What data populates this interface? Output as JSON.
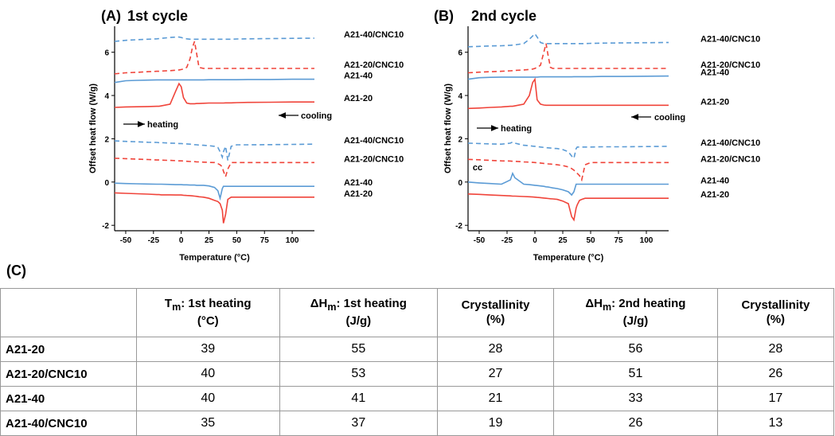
{
  "chart_data": [
    {
      "type": "line",
      "panel": "(A)",
      "title": "1st cycle",
      "xlabel": "Temperature (°C)",
      "ylabel": "Offset heat flow (W/g)",
      "xlim": [
        -60,
        120
      ],
      "ylim": [
        -2.25,
        7.2
      ],
      "xticks": [
        -50,
        -25,
        0,
        25,
        50,
        75,
        100
      ],
      "yticks": [
        -2,
        0,
        2,
        4,
        6
      ],
      "annotations": [
        "heating",
        "cooling"
      ],
      "x": [
        -60,
        -50,
        -40,
        -30,
        -22,
        -20,
        -18,
        -10,
        -5,
        -2,
        0,
        2,
        5,
        8,
        10,
        12,
        14,
        16,
        20,
        25,
        30,
        33,
        35,
        37,
        38,
        40,
        42,
        45,
        50,
        60,
        80,
        100,
        120
      ],
      "series": [
        {
          "name": "A21-40/CNC10",
          "color": "#5b9bd5",
          "dashed": true,
          "values": [
            6.5,
            6.55,
            6.58,
            6.6,
            6.62,
            6.63,
            6.64,
            6.68,
            6.7,
            6.7,
            6.68,
            6.65,
            6.62,
            6.6,
            6.6,
            6.6,
            6.6,
            6.6,
            6.6,
            6.6,
            6.6,
            6.6,
            6.6,
            6.6,
            6.6,
            6.6,
            6.6,
            6.6,
            6.61,
            6.62,
            6.63,
            6.64,
            6.65
          ]
        },
        {
          "name": "A21-20/CNC10",
          "color": "#f0443a",
          "dashed": true,
          "values": [
            5.0,
            5.05,
            5.07,
            5.1,
            5.12,
            5.12,
            5.13,
            5.15,
            5.17,
            5.18,
            5.2,
            5.22,
            5.3,
            5.7,
            6.2,
            6.5,
            5.9,
            5.3,
            5.25,
            5.25,
            5.25,
            5.25,
            5.25,
            5.25,
            5.25,
            5.25,
            5.25,
            5.25,
            5.25,
            5.25,
            5.25,
            5.25,
            5.25
          ]
        },
        {
          "name": "A21-40",
          "color": "#5b9bd5",
          "dashed": false,
          "values": [
            4.6,
            4.68,
            4.7,
            4.71,
            4.72,
            4.72,
            4.72,
            4.72,
            4.72,
            4.72,
            4.72,
            4.72,
            4.72,
            4.72,
            4.72,
            4.72,
            4.72,
            4.72,
            4.72,
            4.73,
            4.73,
            4.73,
            4.73,
            4.73,
            4.73,
            4.73,
            4.73,
            4.73,
            4.73,
            4.74,
            4.74,
            4.75,
            4.75
          ]
        },
        {
          "name": "A21-20",
          "color": "#f0443a",
          "dashed": false,
          "values": [
            3.45,
            3.47,
            3.48,
            3.49,
            3.5,
            3.5,
            3.52,
            3.6,
            4.2,
            4.55,
            4.4,
            3.9,
            3.65,
            3.62,
            3.62,
            3.62,
            3.63,
            3.63,
            3.64,
            3.65,
            3.65,
            3.65,
            3.65,
            3.65,
            3.65,
            3.66,
            3.66,
            3.66,
            3.67,
            3.68,
            3.69,
            3.7,
            3.7
          ]
        },
        {
          "name": "A21-40/CNC10",
          "color": "#5b9bd5",
          "dashed": true,
          "values": [
            1.9,
            1.88,
            1.86,
            1.84,
            1.83,
            1.82,
            1.82,
            1.8,
            1.79,
            1.78,
            1.78,
            1.77,
            1.76,
            1.75,
            1.74,
            1.73,
            1.72,
            1.71,
            1.7,
            1.68,
            1.65,
            1.6,
            1.4,
            1.15,
            1.4,
            1.65,
            1.0,
            1.65,
            1.72,
            1.72,
            1.73,
            1.74,
            1.75
          ]
        },
        {
          "name": "A21-20/CNC10",
          "color": "#f0443a",
          "dashed": true,
          "values": [
            1.1,
            1.08,
            1.06,
            1.04,
            1.02,
            1.02,
            1.01,
            1.0,
            0.99,
            0.98,
            0.98,
            0.97,
            0.96,
            0.95,
            0.95,
            0.94,
            0.93,
            0.93,
            0.92,
            0.91,
            0.9,
            0.85,
            0.8,
            0.7,
            0.5,
            0.25,
            0.6,
            0.9,
            0.9,
            0.9,
            0.9,
            0.9,
            0.9
          ]
        },
        {
          "name": "A21-40",
          "color": "#5b9bd5",
          "dashed": false,
          "values": [
            -0.05,
            -0.07,
            -0.08,
            -0.09,
            -0.1,
            -0.1,
            -0.1,
            -0.11,
            -0.12,
            -0.12,
            -0.12,
            -0.13,
            -0.13,
            -0.14,
            -0.14,
            -0.14,
            -0.15,
            -0.15,
            -0.15,
            -0.18,
            -0.25,
            -0.4,
            -0.75,
            -0.3,
            -0.2,
            -0.2,
            -0.2,
            -0.2,
            -0.2,
            -0.2,
            -0.2,
            -0.2,
            -0.2
          ]
        },
        {
          "name": "A21-20",
          "color": "#f0443a",
          "dashed": false,
          "values": [
            -0.5,
            -0.52,
            -0.54,
            -0.56,
            -0.58,
            -0.58,
            -0.59,
            -0.59,
            -0.6,
            -0.6,
            -0.6,
            -0.61,
            -0.62,
            -0.63,
            -0.64,
            -0.65,
            -0.66,
            -0.68,
            -0.7,
            -0.75,
            -0.85,
            -0.9,
            -1.0,
            -1.3,
            -1.9,
            -1.5,
            -0.8,
            -0.7,
            -0.7,
            -0.7,
            -0.7,
            -0.7,
            -0.7
          ]
        }
      ]
    },
    {
      "type": "line",
      "panel": "(B)",
      "title": "2nd cycle",
      "xlabel": "Temperature (°C)",
      "ylabel": "Offset heat flow (W/g)",
      "xlim": [
        -60,
        120
      ],
      "ylim": [
        -2.25,
        7.2
      ],
      "xticks": [
        -50,
        -25,
        0,
        25,
        50,
        75,
        100
      ],
      "yticks": [
        -2,
        0,
        2,
        4,
        6
      ],
      "annotations": [
        "heating",
        "cooling",
        "cc"
      ],
      "x": [
        -60,
        -50,
        -40,
        -30,
        -22,
        -20,
        -18,
        -10,
        -5,
        -2,
        0,
        2,
        5,
        8,
        10,
        12,
        14,
        16,
        20,
        25,
        30,
        33,
        35,
        37,
        38,
        40,
        42,
        45,
        50,
        60,
        80,
        100,
        120
      ],
      "series": [
        {
          "name": "A21-40/CNC10",
          "color": "#5b9bd5",
          "dashed": true,
          "values": [
            6.25,
            6.27,
            6.29,
            6.3,
            6.32,
            6.33,
            6.34,
            6.4,
            6.6,
            6.75,
            6.85,
            6.7,
            6.45,
            6.4,
            6.4,
            6.4,
            6.4,
            6.4,
            6.4,
            6.4,
            6.4,
            6.4,
            6.4,
            6.4,
            6.4,
            6.4,
            6.4,
            6.4,
            6.41,
            6.42,
            6.43,
            6.44,
            6.45
          ]
        },
        {
          "name": "A21-20/CNC10",
          "color": "#f0443a",
          "dashed": true,
          "values": [
            5.05,
            5.08,
            5.1,
            5.12,
            5.14,
            5.15,
            5.16,
            5.18,
            5.2,
            5.22,
            5.25,
            5.3,
            5.4,
            6.0,
            6.4,
            5.8,
            5.3,
            5.25,
            5.25,
            5.25,
            5.25,
            5.25,
            5.25,
            5.25,
            5.25,
            5.25,
            5.25,
            5.25,
            5.25,
            5.25,
            5.25,
            5.25,
            5.25
          ]
        },
        {
          "name": "A21-40",
          "color": "#5b9bd5",
          "dashed": false,
          "values": [
            4.75,
            4.82,
            4.84,
            4.85,
            4.85,
            4.85,
            4.85,
            4.85,
            4.85,
            4.85,
            4.85,
            4.85,
            4.86,
            4.86,
            4.86,
            4.86,
            4.86,
            4.86,
            4.86,
            4.86,
            4.86,
            4.86,
            4.87,
            4.87,
            4.87,
            4.87,
            4.87,
            4.87,
            4.87,
            4.88,
            4.88,
            4.89,
            4.9
          ]
        },
        {
          "name": "A21-20",
          "color": "#f0443a",
          "dashed": false,
          "values": [
            3.4,
            3.42,
            3.45,
            3.47,
            3.5,
            3.5,
            3.52,
            3.6,
            4.0,
            4.6,
            4.75,
            3.8,
            3.6,
            3.56,
            3.55,
            3.55,
            3.55,
            3.55,
            3.55,
            3.55,
            3.55,
            3.55,
            3.55,
            3.55,
            3.55,
            3.55,
            3.55,
            3.55,
            3.55,
            3.55,
            3.55,
            3.55,
            3.55
          ]
        },
        {
          "name": "A21-40/CNC10",
          "color": "#5b9bd5",
          "dashed": true,
          "values": [
            1.8,
            1.78,
            1.76,
            1.75,
            1.8,
            1.85,
            1.8,
            1.7,
            1.68,
            1.66,
            1.65,
            1.64,
            1.62,
            1.6,
            1.59,
            1.58,
            1.57,
            1.56,
            1.55,
            1.5,
            1.4,
            1.2,
            1.1,
            1.55,
            1.62,
            1.62,
            1.62,
            1.62,
            1.62,
            1.63,
            1.63,
            1.64,
            1.65
          ]
        },
        {
          "name": "A21-20/CNC10",
          "color": "#f0443a",
          "dashed": true,
          "values": [
            1.05,
            1.03,
            1.0,
            0.98,
            0.97,
            0.96,
            0.96,
            0.93,
            0.92,
            0.91,
            0.9,
            0.89,
            0.88,
            0.86,
            0.85,
            0.84,
            0.83,
            0.82,
            0.8,
            0.76,
            0.7,
            0.62,
            0.55,
            0.45,
            0.4,
            0.3,
            0.1,
            0.8,
            0.9,
            0.9,
            0.9,
            0.9,
            0.9
          ]
        },
        {
          "name": "A21-40",
          "color": "#5b9bd5",
          "dashed": false,
          "values": [
            0.0,
            -0.04,
            -0.07,
            -0.1,
            0.1,
            0.4,
            0.2,
            -0.1,
            -0.12,
            -0.14,
            -0.15,
            -0.16,
            -0.18,
            -0.2,
            -0.22,
            -0.23,
            -0.25,
            -0.27,
            -0.3,
            -0.36,
            -0.45,
            -0.6,
            -0.45,
            -0.1,
            -0.1,
            -0.1,
            -0.1,
            -0.1,
            -0.1,
            -0.1,
            -0.1,
            -0.1,
            -0.1
          ]
        },
        {
          "name": "A21-20",
          "color": "#f0443a",
          "dashed": false,
          "values": [
            -0.55,
            -0.57,
            -0.6,
            -0.62,
            -0.64,
            -0.65,
            -0.65,
            -0.67,
            -0.68,
            -0.69,
            -0.7,
            -0.71,
            -0.72,
            -0.74,
            -0.75,
            -0.76,
            -0.77,
            -0.78,
            -0.8,
            -0.88,
            -1.0,
            -1.6,
            -1.75,
            -1.2,
            -1.05,
            -0.85,
            -0.8,
            -0.75,
            -0.75,
            -0.75,
            -0.75,
            -0.75,
            -0.75
          ]
        }
      ]
    }
  ],
  "panel_c": "(C)",
  "table": {
    "header": [
      {
        "lead": "T",
        "sub": "m",
        "tail": ": 1st heating",
        "unit": "(°C)"
      },
      {
        "lead": "ΔH",
        "sub": "m",
        "tail": ": 1st heating",
        "unit": "(J/g)"
      },
      {
        "lead": "Crystallinity",
        "unit": "(%)"
      },
      {
        "lead": "ΔH",
        "sub": "m",
        "tail": ": 2nd heating",
        "unit": "(J/g)"
      },
      {
        "lead": "Crystallinity",
        "unit": "(%)"
      }
    ],
    "rows": [
      [
        "A21-20",
        39,
        55,
        28,
        56,
        28
      ],
      [
        "A21-20/CNC10",
        40,
        53,
        27,
        51,
        26
      ],
      [
        "A21-40",
        40,
        41,
        21,
        33,
        17
      ],
      [
        "A21-40/CNC10",
        35,
        37,
        19,
        26,
        13
      ]
    ]
  }
}
